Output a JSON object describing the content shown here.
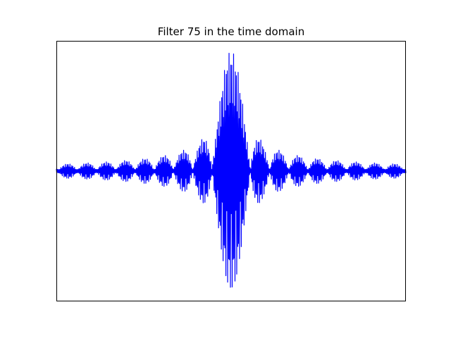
{
  "chart_data": {
    "type": "line",
    "title": "Filter 75 in the time domain",
    "xlabel": "",
    "ylabel": "",
    "x_ticks_visible": false,
    "y_ticks_visible": false,
    "grid": false,
    "legend": "none",
    "xlim": [
      0,
      1000
    ],
    "ylim": [
      -1.0,
      1.0
    ],
    "series": [
      {
        "color": "#0000ff",
        "description": "oscillating filter impulse response with sinc-like lobe envelope, peak at center",
        "center": 500,
        "peak_amplitude": 0.92,
        "lobe_spacing": 55,
        "carrier_period": 2.6,
        "samples": 1001
      }
    ]
  }
}
